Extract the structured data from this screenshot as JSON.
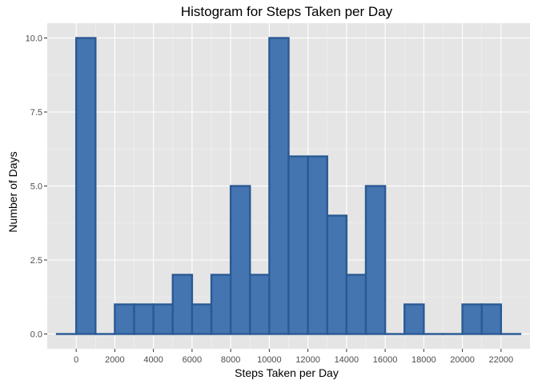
{
  "chart_data": {
    "type": "bar",
    "title": "Histogram for Steps Taken per Day",
    "xlabel": "Steps Taken per Day",
    "ylabel": "Number of Days",
    "bin_width": 1000,
    "bins": [
      {
        "start": -1000,
        "end": 0,
        "count": 0
      },
      {
        "start": 0,
        "end": 1000,
        "count": 10
      },
      {
        "start": 1000,
        "end": 2000,
        "count": 0
      },
      {
        "start": 2000,
        "end": 3000,
        "count": 1
      },
      {
        "start": 3000,
        "end": 4000,
        "count": 1
      },
      {
        "start": 4000,
        "end": 5000,
        "count": 1
      },
      {
        "start": 5000,
        "end": 6000,
        "count": 2
      },
      {
        "start": 6000,
        "end": 7000,
        "count": 1
      },
      {
        "start": 7000,
        "end": 8000,
        "count": 2
      },
      {
        "start": 8000,
        "end": 9000,
        "count": 5
      },
      {
        "start": 9000,
        "end": 10000,
        "count": 2
      },
      {
        "start": 10000,
        "end": 11000,
        "count": 10
      },
      {
        "start": 11000,
        "end": 12000,
        "count": 6
      },
      {
        "start": 12000,
        "end": 13000,
        "count": 6
      },
      {
        "start": 13000,
        "end": 14000,
        "count": 4
      },
      {
        "start": 14000,
        "end": 15000,
        "count": 2
      },
      {
        "start": 15000,
        "end": 16000,
        "count": 5
      },
      {
        "start": 16000,
        "end": 17000,
        "count": 0
      },
      {
        "start": 17000,
        "end": 18000,
        "count": 1
      },
      {
        "start": 18000,
        "end": 19000,
        "count": 0
      },
      {
        "start": 19000,
        "end": 20000,
        "count": 0
      },
      {
        "start": 20000,
        "end": 21000,
        "count": 1
      },
      {
        "start": 21000,
        "end": 22000,
        "count": 1
      },
      {
        "start": 22000,
        "end": 23000,
        "count": 0
      }
    ],
    "x_ticks": [
      0,
      2000,
      4000,
      6000,
      8000,
      10000,
      12000,
      14000,
      16000,
      18000,
      20000,
      22000
    ],
    "y_ticks": [
      0,
      2.5,
      5,
      7.5,
      10
    ],
    "y_tick_labels": [
      "0.0",
      "2.5",
      "5.0",
      "7.5",
      "10.0"
    ],
    "xlim": [
      -1500,
      23500
    ],
    "ylim": [
      -0.5,
      10.5
    ],
    "grid": true,
    "legend": "none",
    "colors": {
      "bar_fill": "#4575b0",
      "bar_outline": "#2a5a94",
      "panel_background": "#e5e5e5",
      "grid_major": "#ffffff",
      "grid_minor": "#f2f2f2"
    }
  }
}
